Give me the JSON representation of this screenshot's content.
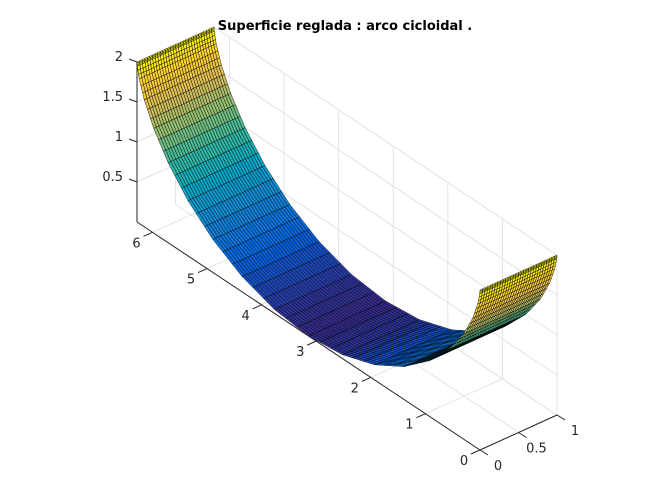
{
  "chart_data": {
    "type": "surface",
    "title": "Superficie reglada : arco cicloidal .",
    "xlabel": "",
    "ylabel": "",
    "zlabel": "",
    "xlim": [
      0,
      6.2832
    ],
    "ylim": [
      0,
      1
    ],
    "zlim": [
      0,
      2
    ],
    "x_ticks": [
      0,
      1,
      2,
      3,
      4,
      5,
      6
    ],
    "y_ticks": [
      0,
      0.5,
      1
    ],
    "z_ticks": [
      0.5,
      1,
      1.5,
      2
    ],
    "x_tick_labels": [
      "0",
      "1",
      "2",
      "3",
      "4",
      "5",
      "6"
    ],
    "y_tick_labels": [
      "0",
      "0.5",
      "1"
    ],
    "z_tick_labels": [
      "0.5",
      "1",
      "1.5",
      "2"
    ],
    "grid": true,
    "colormap": "parula",
    "profile_x": [
      0,
      0.0052,
      0.0405,
      0.1335,
      0.3055,
      0.5708,
      0.9339,
      1.3901,
      1.9255,
      2.5184,
      3.1416,
      3.7648,
      4.3577,
      4.8931,
      5.3493,
      5.7124,
      5.9777,
      6.1497,
      6.2427,
      6.278,
      6.2832
    ],
    "profile_z": [
      2,
      1.9511,
      1.809,
      1.5878,
      1.309,
      1,
      0.691,
      0.4122,
      0.191,
      0.0489,
      0,
      0.0489,
      0.191,
      0.4122,
      0.691,
      1,
      1.309,
      1.5878,
      1.809,
      1.9511,
      2
    ],
    "y_values": [
      0,
      1
    ]
  }
}
